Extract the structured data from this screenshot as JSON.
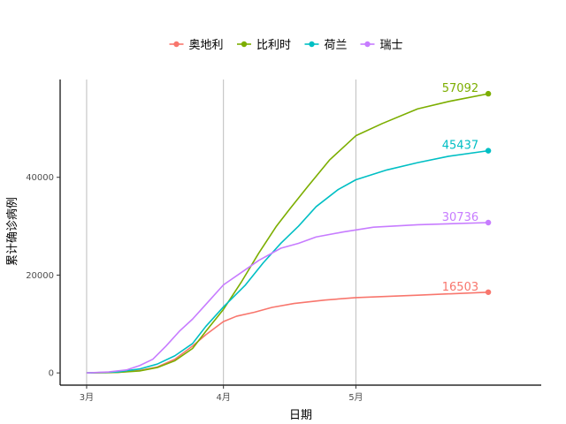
{
  "chart_data": {
    "type": "line",
    "xlabel": "日期",
    "ylabel": "累计确诊病例",
    "x_ticks": [
      {
        "date": "2020-03-01",
        "label": "3月"
      },
      {
        "date": "2020-04-01",
        "label": "4月"
      },
      {
        "date": "2020-05-01",
        "label": "5月"
      }
    ],
    "x_range": [
      "2020-02-24",
      "2020-06-12"
    ],
    "y_ticks": [
      0,
      20000,
      40000
    ],
    "y_range": [
      -2500,
      60000
    ],
    "grid": "major vertical lines at month ticks",
    "legend_position": "top",
    "series": [
      {
        "name": "奥地利",
        "color": "#F8766D",
        "end_label": "16503",
        "points": [
          [
            "2020-03-01",
            0
          ],
          [
            "2020-03-08",
            100
          ],
          [
            "2020-03-13",
            500
          ],
          [
            "2020-03-17",
            1200
          ],
          [
            "2020-03-21",
            2800
          ],
          [
            "2020-03-25",
            5500
          ],
          [
            "2020-03-28",
            7800
          ],
          [
            "2020-04-01",
            10500
          ],
          [
            "2020-04-04",
            11600
          ],
          [
            "2020-04-08",
            12400
          ],
          [
            "2020-04-12",
            13400
          ],
          [
            "2020-04-17",
            14200
          ],
          [
            "2020-04-24",
            14900
          ],
          [
            "2020-05-01",
            15400
          ],
          [
            "2020-05-15",
            15900
          ],
          [
            "2020-05-31",
            16503
          ]
        ]
      },
      {
        "name": "比利时",
        "color": "#7CAE00",
        "end_label": "57092",
        "points": [
          [
            "2020-03-01",
            0
          ],
          [
            "2020-03-08",
            100
          ],
          [
            "2020-03-13",
            400
          ],
          [
            "2020-03-17",
            1100
          ],
          [
            "2020-03-21",
            2500
          ],
          [
            "2020-03-25",
            5000
          ],
          [
            "2020-03-28",
            8500
          ],
          [
            "2020-04-01",
            13000
          ],
          [
            "2020-04-05",
            18500
          ],
          [
            "2020-04-09",
            24500
          ],
          [
            "2020-04-13",
            30000
          ],
          [
            "2020-04-16",
            33500
          ],
          [
            "2020-04-20",
            38000
          ],
          [
            "2020-04-25",
            43500
          ],
          [
            "2020-05-01",
            48500
          ],
          [
            "2020-05-07",
            51000
          ],
          [
            "2020-05-15",
            54000
          ],
          [
            "2020-05-22",
            55500
          ],
          [
            "2020-05-31",
            57092
          ]
        ]
      },
      {
        "name": "荷兰",
        "color": "#00BFC4",
        "end_label": "45437",
        "points": [
          [
            "2020-03-01",
            0
          ],
          [
            "2020-03-08",
            200
          ],
          [
            "2020-03-13",
            800
          ],
          [
            "2020-03-17",
            1800
          ],
          [
            "2020-03-21",
            3500
          ],
          [
            "2020-03-25",
            6000
          ],
          [
            "2020-03-28",
            9500
          ],
          [
            "2020-04-01",
            13500
          ],
          [
            "2020-04-06",
            18000
          ],
          [
            "2020-04-10",
            22500
          ],
          [
            "2020-04-14",
            26500
          ],
          [
            "2020-04-18",
            30000
          ],
          [
            "2020-04-22",
            34000
          ],
          [
            "2020-04-27",
            37500
          ],
          [
            "2020-05-01",
            39500
          ],
          [
            "2020-05-08",
            41500
          ],
          [
            "2020-05-15",
            43000
          ],
          [
            "2020-05-22",
            44300
          ],
          [
            "2020-05-31",
            45437
          ]
        ]
      },
      {
        "name": "瑞士",
        "color": "#C77CFF",
        "end_label": "30736",
        "points": [
          [
            "2020-03-01",
            0
          ],
          [
            "2020-03-06",
            200
          ],
          [
            "2020-03-10",
            600
          ],
          [
            "2020-03-13",
            1500
          ],
          [
            "2020-03-16",
            2800
          ],
          [
            "2020-03-19",
            5500
          ],
          [
            "2020-03-22",
            8500
          ],
          [
            "2020-03-25",
            11000
          ],
          [
            "2020-03-28",
            14000
          ],
          [
            "2020-04-01",
            18000
          ],
          [
            "2020-04-05",
            20500
          ],
          [
            "2020-04-09",
            23000
          ],
          [
            "2020-04-14",
            25500
          ],
          [
            "2020-04-18",
            26500
          ],
          [
            "2020-04-22",
            27800
          ],
          [
            "2020-04-28",
            28800
          ],
          [
            "2020-05-05",
            29800
          ],
          [
            "2020-05-15",
            30300
          ],
          [
            "2020-05-31",
            30736
          ]
        ]
      }
    ]
  }
}
